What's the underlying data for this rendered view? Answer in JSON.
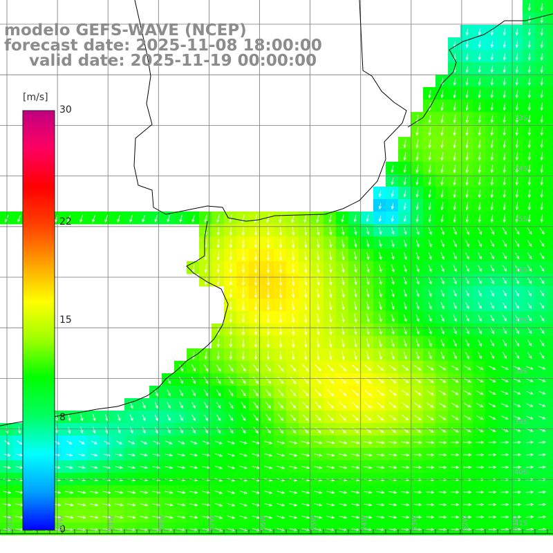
{
  "title": {
    "model": "modelo GEFS-WAVE (NCEP)",
    "forecast": "forecast date: 2025-11-08 18:00:00",
    "valid": "valid date: 2025-11-19 00:00:00"
  },
  "colorbar": {
    "unit": "[m/s]",
    "min": 0,
    "max": 30,
    "ticks": [
      "30",
      "22",
      "15",
      "8",
      "0"
    ],
    "tick_values": [
      30,
      22,
      15,
      8,
      0
    ],
    "stops": [
      "#0000ff",
      "#00a0ff",
      "#00ffff",
      "#00ff60",
      "#00ff00",
      "#a0ff00",
      "#ffff00",
      "#ffa000",
      "#ff4000",
      "#ff0000",
      "#ff0060",
      "#c00080"
    ]
  },
  "latitudes": [
    "33S",
    "34S",
    "35S",
    "36S",
    "37S",
    "38S",
    "39S",
    "40S",
    "41S"
  ],
  "longitudes": [
    "61W",
    "60W",
    "59W",
    "58W",
    "57W",
    "56W",
    "55W",
    "54W",
    "53W",
    "52W",
    "51W"
  ],
  "colors": {
    "land": "#ffffff",
    "grid": "#777777",
    "coast": "#000000",
    "arrows": "#ffffff",
    "title": "#8c8c8c"
  }
}
